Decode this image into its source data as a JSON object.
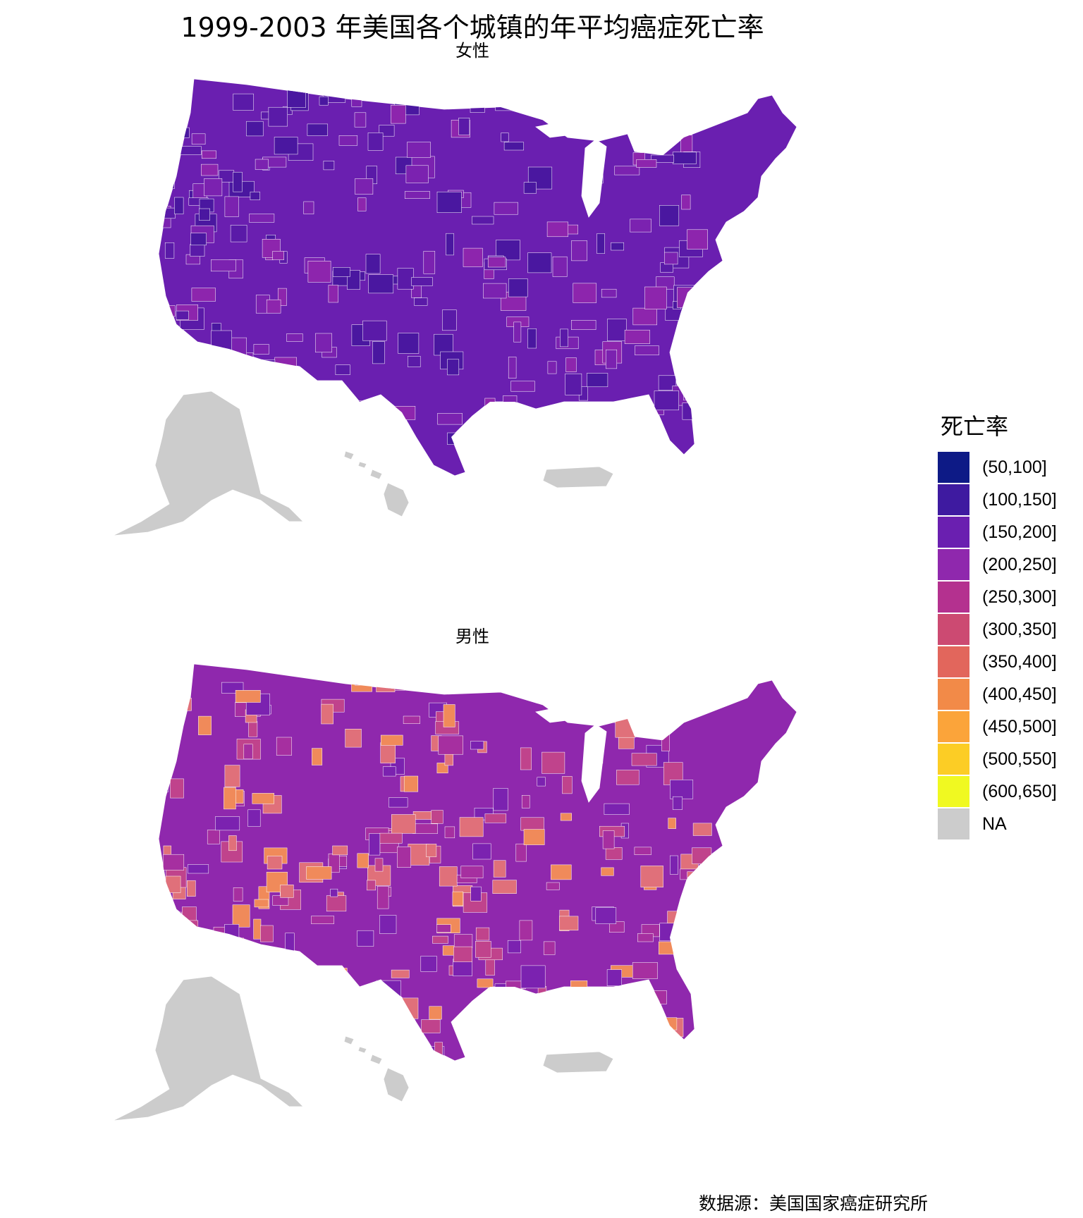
{
  "title": "1999-2003 年美国各个城镇的年平均癌症死亡率",
  "panels": [
    {
      "label": "女性",
      "base_color": "#6a1fb0",
      "patch_colors": [
        "#5a1aa8",
        "#4a17a0",
        "#7b22b0",
        "#8d25ad"
      ]
    },
    {
      "label": "男性",
      "base_color": "#8f28ad",
      "patch_colors": [
        "#a62fa0",
        "#c0438c",
        "#7b22b0",
        "#e0707a",
        "#f08a5a"
      ]
    }
  ],
  "legend": {
    "title": "死亡率",
    "items": [
      {
        "label": "(50,100]",
        "color": "#0d1a86"
      },
      {
        "label": "(100,150]",
        "color": "#3e1aa0"
      },
      {
        "label": "(150,200]",
        "color": "#6a1fb0"
      },
      {
        "label": "(200,250]",
        "color": "#8f28ad"
      },
      {
        "label": "(250,300]",
        "color": "#b4318f"
      },
      {
        "label": "(300,350]",
        "color": "#cc4a72"
      },
      {
        "label": "(350,400]",
        "color": "#e2665c"
      },
      {
        "label": "(400,450]",
        "color": "#f28a48"
      },
      {
        "label": "(450,500]",
        "color": "#fba43a"
      },
      {
        "label": "(500,550]",
        "color": "#fccd25"
      },
      {
        "label": "(600,650]",
        "color": "#f0f921"
      },
      {
        "label": "NA",
        "color": "#cccccc"
      }
    ]
  },
  "caption": "数据源：美国国家癌症研究所",
  "na_color": "#cccccc"
}
